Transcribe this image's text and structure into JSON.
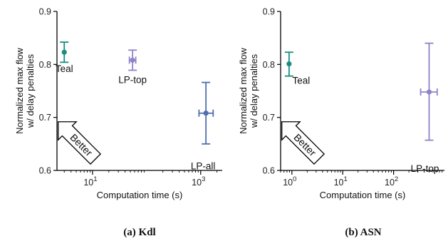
{
  "chart_data": [
    {
      "type": "scatter",
      "caption": "(a) Kdl",
      "xlabel": "Computation time (s)",
      "ylabel_lines": [
        "Normalized max flow",
        "w/ delay penalties"
      ],
      "x_scale": "log",
      "xlim": [
        2.2,
        2500
      ],
      "ylim": [
        0.6,
        0.9
      ],
      "yticks": [
        "0.6",
        "0.7",
        "0.8",
        "0.9"
      ],
      "xticks": [
        {
          "value": 10,
          "base": "10",
          "exp": "1"
        },
        {
          "value": 1000,
          "base": "10",
          "exp": "3"
        }
      ],
      "better_label": "Better",
      "points": [
        {
          "label": "Teal",
          "x": 3.0,
          "y": 0.823,
          "y_err": [
            0.804,
            0.842
          ],
          "x_err": null,
          "color": "#1a8c80"
        },
        {
          "label": "LP-top",
          "x": 55,
          "y": 0.808,
          "y_err": [
            0.789,
            0.827
          ],
          "x_err": [
            48,
            63
          ],
          "color": "#8e84c8"
        },
        {
          "label": "LP-all",
          "x": 1250,
          "y": 0.708,
          "y_err": [
            0.65,
            0.766
          ],
          "x_err": [
            930,
            1700
          ],
          "color": "#4e6fae"
        }
      ]
    },
    {
      "type": "scatter",
      "caption": "(b) ASN",
      "xlabel": "Computation time (s)",
      "ylabel_lines": [
        "Normalized max flow",
        "w/ delay penalties"
      ],
      "x_scale": "log",
      "xlim": [
        0.6,
        1000
      ],
      "ylim": [
        0.6,
        0.9
      ],
      "yticks": [
        "0.6",
        "0.7",
        "0.8",
        "0.9"
      ],
      "xticks": [
        {
          "value": 1,
          "base": "10",
          "exp": "0"
        },
        {
          "value": 10,
          "base": "10",
          "exp": "1"
        },
        {
          "value": 100,
          "base": "10",
          "exp": "2"
        }
      ],
      "better_label": "Better",
      "points": [
        {
          "label": "Teal",
          "x": 0.88,
          "y": 0.801,
          "y_err": [
            0.778,
            0.823
          ],
          "x_err": null,
          "color": "#1a8c80"
        },
        {
          "label": "LP-top",
          "x": 500,
          "y": 0.748,
          "y_err": [
            0.657,
            0.84
          ],
          "x_err": [
            340,
            720
          ],
          "color": "#8e84c8"
        }
      ]
    }
  ]
}
